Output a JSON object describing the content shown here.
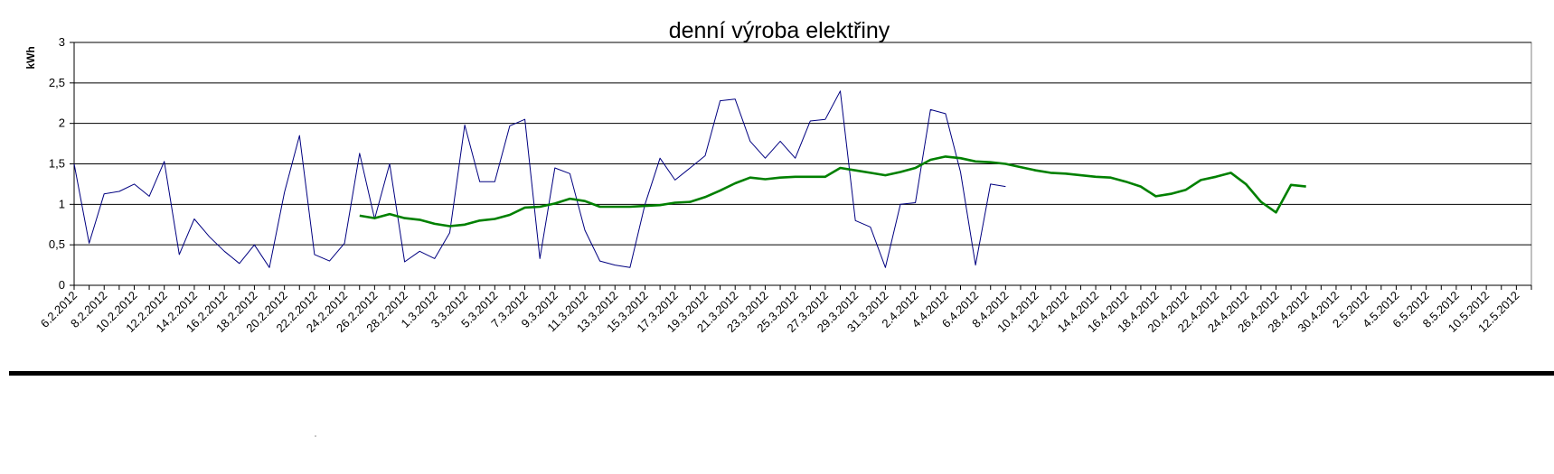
{
  "chart_data": {
    "type": "line",
    "title": "denní výroba elektřiny",
    "y_label": "kWh",
    "categories": [
      "6.2.2012",
      null,
      "8.2.2012",
      null,
      "10.2.2012",
      null,
      "12.2.2012",
      null,
      "14.2.2012",
      null,
      "16.2.2012",
      null,
      "18.2.2012",
      null,
      "20.2.2012",
      null,
      "22.2.2012",
      null,
      "24.2.2012",
      null,
      "26.2.2012",
      null,
      "28.2.2012",
      null,
      "1.3.2012",
      null,
      "3.3.2012",
      null,
      "5.3.2012",
      null,
      "7.3.2012",
      null,
      "9.3.2012",
      null,
      "11.3.2012",
      null,
      "13.3.2012",
      null,
      "15.3.2012",
      null,
      "17.3.2012",
      null,
      "19.3.2012",
      null,
      "21.3.2012",
      null,
      "23.3.2012",
      null,
      "25.3.2012",
      null,
      "27.3.2012",
      null,
      "29.3.2012",
      null,
      "31.3.2012",
      null,
      "2.4.2012",
      null,
      "4.4.2012",
      null,
      "6.4.2012",
      null,
      "8.4.2012",
      null,
      "10.4.2012",
      null,
      "12.4.2012",
      null,
      "14.4.2012",
      null,
      "16.4.2012",
      null,
      "18.4.2012",
      null,
      "20.4.2012",
      null,
      "22.4.2012",
      null,
      "24.4.2012",
      null,
      "26.4.2012",
      null,
      "28.4.2012",
      null,
      "30.4.2012",
      null,
      "2.5.2012",
      null,
      "4.5.2012",
      null,
      "6.5.2012",
      null,
      "8.5.2012",
      null,
      "10.5.2012",
      null,
      "12.5.2012",
      null
    ],
    "series": [
      {
        "color": "#000080",
        "width": 1,
        "values": [
          1.5,
          0.52,
          1.13,
          1.16,
          1.25,
          1.1,
          1.53,
          0.38,
          0.82,
          0.6,
          0.42,
          0.27,
          0.5,
          0.22,
          1.15,
          1.85,
          0.38,
          0.3,
          0.52,
          1.63,
          0.82,
          1.5,
          0.29,
          0.42,
          0.33,
          0.65,
          1.98,
          1.28,
          1.28,
          1.97,
          2.05,
          0.33,
          1.45,
          1.38,
          0.68,
          0.3,
          0.25,
          0.22,
          1.0,
          1.57,
          1.3,
          1.45,
          1.6,
          2.28,
          2.3,
          1.78,
          1.57,
          1.78,
          1.57,
          2.03,
          2.05,
          2.4,
          0.8,
          0.72,
          0.22,
          1.0,
          1.02,
          2.17,
          2.12,
          1.4,
          0.25,
          1.25,
          1.22,
          null,
          null,
          null,
          null,
          null,
          null,
          null,
          null,
          null,
          null,
          null,
          null,
          null,
          null,
          null,
          null,
          null,
          null,
          null,
          null,
          null,
          null,
          null,
          null,
          null,
          null,
          null,
          null,
          null,
          null,
          null,
          null,
          null,
          null,
          null
        ]
      },
      {
        "color": "#008000",
        "width": 2.6,
        "values": [
          null,
          null,
          null,
          null,
          null,
          null,
          null,
          null,
          null,
          null,
          null,
          null,
          null,
          null,
          null,
          null,
          null,
          null,
          null,
          0.86,
          0.83,
          0.88,
          0.83,
          0.81,
          0.76,
          0.73,
          0.75,
          0.8,
          0.82,
          0.87,
          0.96,
          0.97,
          1.01,
          1.07,
          1.04,
          0.97,
          0.97,
          0.97,
          0.98,
          0.99,
          1.02,
          1.03,
          1.09,
          1.17,
          1.26,
          1.33,
          1.31,
          1.33,
          1.34,
          1.34,
          1.34,
          1.45,
          1.42,
          1.39,
          1.36,
          1.4,
          1.45,
          1.55,
          1.59,
          1.57,
          1.53,
          1.52,
          1.5,
          1.46,
          1.42,
          1.39,
          1.38,
          1.36,
          1.34,
          1.33,
          1.28,
          1.22,
          1.1,
          1.13,
          1.18,
          1.3,
          1.34,
          1.39,
          1.25,
          1.03,
          0.9,
          1.24,
          1.22,
          null,
          null,
          null,
          null,
          null,
          null,
          null,
          null,
          null,
          null,
          null,
          null,
          null,
          null,
          null
        ]
      }
    ],
    "ylim": [
      0,
      3
    ],
    "yticks": [
      0,
      {
        "value": 0.5,
        "label": "0,5"
      },
      1,
      {
        "value": 1.5,
        "label": "1,5"
      },
      2,
      {
        "value": 2.5,
        "label": "2,5"
      },
      3
    ],
    "grid": true
  }
}
